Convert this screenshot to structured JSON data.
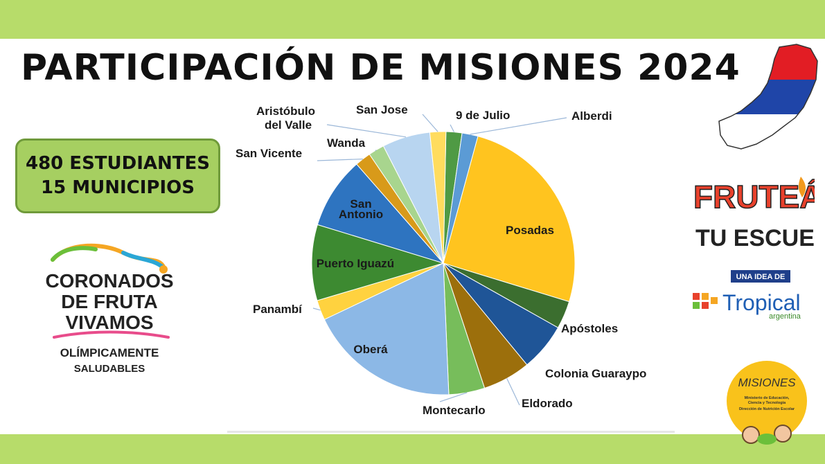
{
  "title": "PARTICIPACIÓN DE MISIONES 2024",
  "stats": {
    "students": "480 ESTUDIANTES",
    "municipalities": "15 MUNICIPIOS"
  },
  "logos": {
    "coronados": [
      "CORONADOS",
      "DE FRUTA",
      "VIVAMOS",
      "OLÍMPICAMENTE",
      "SALUDABLES"
    ],
    "frutea": [
      "FRUTEÁ",
      "TU ESCUELA"
    ],
    "tropical": {
      "tagline": "UNA IDEA DE",
      "name": "Tropical",
      "sub": "argentina"
    },
    "misiones": {
      "name": "MISIONES",
      "line1": "Ministerio de Educación,",
      "line2": "Ciencia y Tecnología",
      "line3": "Dirección de Nutrición Escolar"
    }
  },
  "chart_data": {
    "type": "pie",
    "title": "",
    "slices": [
      {
        "label": "9 de Julio",
        "value": 2.0,
        "color": "#4f9a44"
      },
      {
        "label": "Alberdi",
        "value": 2.0,
        "color": "#5b9bd5"
      },
      {
        "label": "Posadas",
        "value": 26.0,
        "color": "#ffc41f"
      },
      {
        "label": "Apóstoles",
        "value": 3.5,
        "color": "#3b6e2f"
      },
      {
        "label": "Colonia Guaraypo",
        "value": 6.0,
        "color": "#1f5597"
      },
      {
        "label": "Eldorado",
        "value": 6.0,
        "color": "#9c6f0c"
      },
      {
        "label": "Montecarlo",
        "value": 4.5,
        "color": "#77bd5b"
      },
      {
        "label": "Oberá",
        "value": 19.0,
        "color": "#8cb8e6"
      },
      {
        "label": "Panambí",
        "value": 2.5,
        "color": "#ffd23f"
      },
      {
        "label": "Puerto Iguazú",
        "value": 9.5,
        "color": "#3d8a31"
      },
      {
        "label": "San Antonio",
        "value": 9.0,
        "color": "#2e74c0"
      },
      {
        "label": "San Vicente",
        "value": 2.0,
        "color": "#d89a1a"
      },
      {
        "label": "Wanda",
        "value": 2.0,
        "color": "#a8d58e"
      },
      {
        "label": "Aristóbulo del Valle",
        "value": 6.0,
        "color": "#b8d5f0"
      },
      {
        "label": "San Jose",
        "value": 2.0,
        "color": "#ffdc5e"
      }
    ]
  }
}
